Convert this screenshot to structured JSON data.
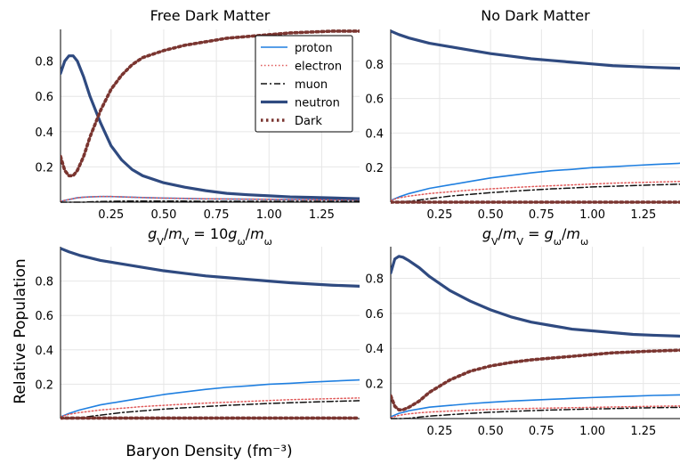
{
  "figure": {
    "ylabel": "Relative Population",
    "xlabel": "Baryon Density (fm⁻³)"
  },
  "legend": {
    "entries": [
      {
        "key": "proton",
        "label": "proton"
      },
      {
        "key": "electron",
        "label": "electron"
      },
      {
        "key": "muon",
        "label": "muon"
      },
      {
        "key": "neutron",
        "label": "neutron"
      },
      {
        "key": "dark",
        "label": "Dark"
      }
    ]
  },
  "styles": {
    "proton": {
      "color": "#1f7fe0",
      "width": 1.6,
      "dash": ""
    },
    "electron": {
      "color": "#e05a5a",
      "width": 1.5,
      "dash": "1.5,2.5"
    },
    "muon": {
      "color": "#111111",
      "width": 1.5,
      "dash": "7,3,2,3"
    },
    "neutron": {
      "color": "#2f4a80",
      "width": 3.2,
      "dash": ""
    },
    "dark": {
      "color": "#7a3530",
      "width": 3.6,
      "dash": "2.5,3.5"
    }
  },
  "chart_data": [
    {
      "type": "line",
      "title": "Free Dark Matter",
      "xlabel": "g_V/m_V = 10g_ω/m_ω",
      "xlim": [
        0.01,
        1.43
      ],
      "ylim": [
        0.0,
        0.98
      ],
      "xticks": [
        "0.25",
        "0.50",
        "0.75",
        "1.00",
        "1.25"
      ],
      "yticks": [
        "0.2",
        "0.4",
        "0.6",
        "0.8"
      ],
      "show_xticks": true,
      "legend": "top-right",
      "x": [
        0.01,
        0.03,
        0.05,
        0.07,
        0.09,
        0.12,
        0.15,
        0.2,
        0.25,
        0.3,
        0.35,
        0.4,
        0.5,
        0.6,
        0.7,
        0.8,
        0.9,
        1.0,
        1.1,
        1.2,
        1.3,
        1.43
      ],
      "series": [
        {
          "key": "proton",
          "values": [
            0.005,
            0.01,
            0.015,
            0.02,
            0.025,
            0.028,
            0.03,
            0.032,
            0.032,
            0.03,
            0.028,
            0.026,
            0.023,
            0.021,
            0.019,
            0.018,
            0.017,
            0.016,
            0.015,
            0.014,
            0.013,
            0.012
          ]
        },
        {
          "key": "electron",
          "values": [
            0.005,
            0.01,
            0.015,
            0.02,
            0.025,
            0.028,
            0.03,
            0.032,
            0.032,
            0.03,
            0.028,
            0.026,
            0.023,
            0.021,
            0.019,
            0.018,
            0.017,
            0.016,
            0.015,
            0.014,
            0.013,
            0.012
          ]
        },
        {
          "key": "muon",
          "values": [
            0,
            0,
            0,
            0,
            0,
            0,
            0.002,
            0.004,
            0.005,
            0.006,
            0.006,
            0.006,
            0.006,
            0.006,
            0.005,
            0.005,
            0.005,
            0.005,
            0.005,
            0.005,
            0.005,
            0.005
          ]
        },
        {
          "key": "neutron",
          "values": [
            0.73,
            0.8,
            0.83,
            0.83,
            0.8,
            0.71,
            0.6,
            0.45,
            0.32,
            0.24,
            0.185,
            0.15,
            0.11,
            0.085,
            0.065,
            0.05,
            0.042,
            0.036,
            0.03,
            0.027,
            0.024,
            0.02
          ]
        },
        {
          "key": "dark",
          "values": [
            0.26,
            0.18,
            0.15,
            0.15,
            0.18,
            0.26,
            0.37,
            0.52,
            0.64,
            0.72,
            0.78,
            0.82,
            0.86,
            0.89,
            0.91,
            0.93,
            0.94,
            0.95,
            0.96,
            0.965,
            0.97,
            0.97
          ]
        }
      ]
    },
    {
      "type": "line",
      "title": "No Dark Matter",
      "xlabel": "g_V/m_V = g_ω/m_ω",
      "xlim": [
        0.01,
        1.43
      ],
      "ylim": [
        0.0,
        1.0
      ],
      "xticks": [
        "0.25",
        "0.50",
        "0.75",
        "1.00",
        "1.25"
      ],
      "yticks": [
        "0.2",
        "0.4",
        "0.6",
        "0.8"
      ],
      "show_xticks": true,
      "legend": "none",
      "x": [
        0.01,
        0.05,
        0.1,
        0.2,
        0.3,
        0.4,
        0.5,
        0.6,
        0.7,
        0.8,
        0.9,
        1.0,
        1.1,
        1.2,
        1.3,
        1.43
      ],
      "series": [
        {
          "key": "proton",
          "values": [
            0.01,
            0.03,
            0.05,
            0.08,
            0.1,
            0.12,
            0.14,
            0.155,
            0.17,
            0.182,
            0.19,
            0.2,
            0.205,
            0.212,
            0.218,
            0.225
          ]
        },
        {
          "key": "electron",
          "values": [
            0.01,
            0.025,
            0.035,
            0.05,
            0.06,
            0.07,
            0.077,
            0.084,
            0.09,
            0.095,
            0.1,
            0.105,
            0.11,
            0.113,
            0.116,
            0.12
          ]
        },
        {
          "key": "muon",
          "values": [
            0,
            0,
            0.005,
            0.02,
            0.035,
            0.045,
            0.055,
            0.063,
            0.07,
            0.077,
            0.082,
            0.088,
            0.092,
            0.096,
            0.1,
            0.104
          ]
        },
        {
          "key": "neutron",
          "values": [
            0.99,
            0.97,
            0.95,
            0.92,
            0.9,
            0.88,
            0.86,
            0.845,
            0.83,
            0.82,
            0.81,
            0.8,
            0.79,
            0.785,
            0.78,
            0.775
          ]
        },
        {
          "key": "dark",
          "values": [
            0,
            0,
            0,
            0,
            0,
            0,
            0,
            0,
            0,
            0,
            0,
            0,
            0,
            0,
            0,
            0
          ]
        }
      ]
    },
    {
      "type": "line",
      "title": "",
      "xlabel": "",
      "xlim": [
        0.01,
        1.43
      ],
      "ylim": [
        0.0,
        1.0
      ],
      "xticks": [
        "0.25",
        "0.50",
        "0.75",
        "1.00",
        "1.25"
      ],
      "yticks": [
        "0.2",
        "0.4",
        "0.6",
        "0.8"
      ],
      "show_xticks": false,
      "legend": "none",
      "x": [
        0.01,
        0.05,
        0.1,
        0.2,
        0.3,
        0.4,
        0.5,
        0.6,
        0.7,
        0.8,
        0.9,
        1.0,
        1.1,
        1.2,
        1.3,
        1.43
      ],
      "series": [
        {
          "key": "proton",
          "values": [
            0.01,
            0.03,
            0.05,
            0.08,
            0.1,
            0.12,
            0.14,
            0.155,
            0.17,
            0.182,
            0.19,
            0.2,
            0.205,
            0.212,
            0.218,
            0.225
          ]
        },
        {
          "key": "electron",
          "values": [
            0.01,
            0.025,
            0.035,
            0.05,
            0.06,
            0.07,
            0.077,
            0.084,
            0.09,
            0.095,
            0.1,
            0.105,
            0.11,
            0.113,
            0.116,
            0.12
          ]
        },
        {
          "key": "muon",
          "values": [
            0,
            0,
            0.005,
            0.02,
            0.035,
            0.045,
            0.055,
            0.063,
            0.07,
            0.077,
            0.082,
            0.088,
            0.092,
            0.096,
            0.1,
            0.104
          ]
        },
        {
          "key": "neutron",
          "values": [
            0.99,
            0.97,
            0.95,
            0.92,
            0.9,
            0.88,
            0.86,
            0.845,
            0.83,
            0.82,
            0.81,
            0.8,
            0.79,
            0.783,
            0.776,
            0.77
          ]
        },
        {
          "key": "dark",
          "values": [
            0.003,
            0.003,
            0.003,
            0.003,
            0.003,
            0.003,
            0.003,
            0.003,
            0.003,
            0.003,
            0.003,
            0.003,
            0.003,
            0.003,
            0.003,
            0.003
          ]
        }
      ]
    },
    {
      "type": "line",
      "title": "",
      "xlabel": "",
      "xlim": [
        0.01,
        1.43
      ],
      "ylim": [
        0.0,
        0.98
      ],
      "xticks": [
        "0.25",
        "0.50",
        "0.75",
        "1.00",
        "1.25"
      ],
      "yticks": [
        "0.2",
        "0.4",
        "0.6",
        "0.8"
      ],
      "show_xticks": true,
      "legend": "none",
      "x": [
        0.01,
        0.03,
        0.05,
        0.07,
        0.1,
        0.15,
        0.2,
        0.3,
        0.4,
        0.5,
        0.6,
        0.7,
        0.8,
        0.9,
        1.0,
        1.1,
        1.2,
        1.3,
        1.43
      ],
      "series": [
        {
          "key": "proton",
          "values": [
            0.01,
            0.02,
            0.03,
            0.035,
            0.045,
            0.055,
            0.065,
            0.075,
            0.085,
            0.093,
            0.1,
            0.105,
            0.11,
            0.115,
            0.12,
            0.124,
            0.128,
            0.132,
            0.135
          ]
        },
        {
          "key": "electron",
          "values": [
            0.005,
            0.012,
            0.018,
            0.022,
            0.027,
            0.033,
            0.037,
            0.043,
            0.048,
            0.052,
            0.055,
            0.058,
            0.06,
            0.062,
            0.064,
            0.066,
            0.068,
            0.07,
            0.072
          ]
        },
        {
          "key": "muon",
          "values": [
            0,
            0,
            0,
            0,
            0.002,
            0.008,
            0.014,
            0.022,
            0.03,
            0.036,
            0.041,
            0.045,
            0.049,
            0.052,
            0.055,
            0.057,
            0.06,
            0.062,
            0.064
          ]
        },
        {
          "key": "neutron",
          "values": [
            0.83,
            0.91,
            0.925,
            0.92,
            0.9,
            0.86,
            0.81,
            0.73,
            0.67,
            0.62,
            0.58,
            0.55,
            0.53,
            0.51,
            0.5,
            0.49,
            0.48,
            0.475,
            0.47
          ]
        },
        {
          "key": "dark",
          "values": [
            0.13,
            0.07,
            0.05,
            0.05,
            0.065,
            0.1,
            0.15,
            0.22,
            0.27,
            0.3,
            0.32,
            0.335,
            0.345,
            0.355,
            0.365,
            0.375,
            0.38,
            0.385,
            0.39
          ]
        }
      ]
    }
  ]
}
